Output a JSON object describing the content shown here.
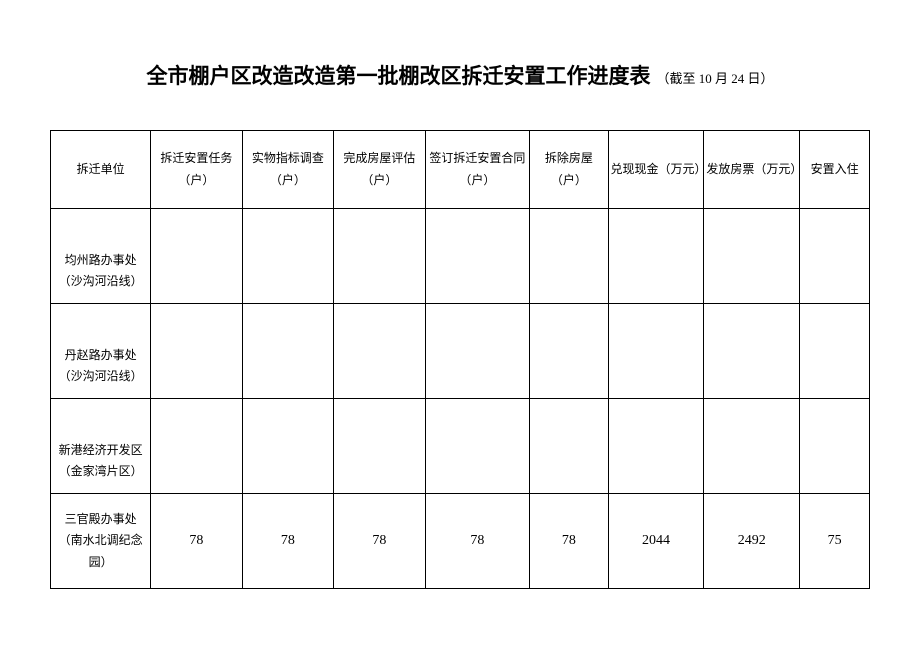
{
  "title": {
    "main": "全市棚户区改造改造第一批棚改区拆迁安置工作进度表",
    "sub": "（截至 10 月 24 日）"
  },
  "table": {
    "columns": [
      "拆迁单位",
      "拆迁安置任务（户）",
      "实物指标调查（户）",
      "完成房屋评估（户）",
      "签订拆迁安置合同（户）",
      "拆除房屋（户）",
      "兑现现金（万元）",
      "发放房票（万元）",
      "安置入住"
    ],
    "rows": [
      {
        "label": "均州路办事处（沙沟河沿线）",
        "cells": [
          "",
          "",
          "",
          "",
          "",
          "",
          "",
          ""
        ]
      },
      {
        "label": "丹赵路办事处（沙沟河沿线）",
        "cells": [
          "",
          "",
          "",
          "",
          "",
          "",
          "",
          ""
        ]
      },
      {
        "label": "新港经济开发区（金家湾片区）",
        "cells": [
          "",
          "",
          "",
          "",
          "",
          "",
          "",
          ""
        ]
      },
      {
        "label": "三官殿办事处（南水北调纪念园）",
        "cells": [
          "78",
          "78",
          "78",
          "78",
          "78",
          "2044",
          "2492",
          "75"
        ]
      }
    ],
    "col_widths": [
      "11.5%",
      "10.5%",
      "10.5%",
      "10.5%",
      "12%",
      "9%",
      "11%",
      "11%",
      "8%"
    ],
    "border_color": "#000000",
    "background_color": "#ffffff",
    "text_color": "#000000",
    "header_fontsize": 12,
    "cell_fontsize": 14,
    "title_fontsize": 21,
    "sub_fontsize": 13
  }
}
